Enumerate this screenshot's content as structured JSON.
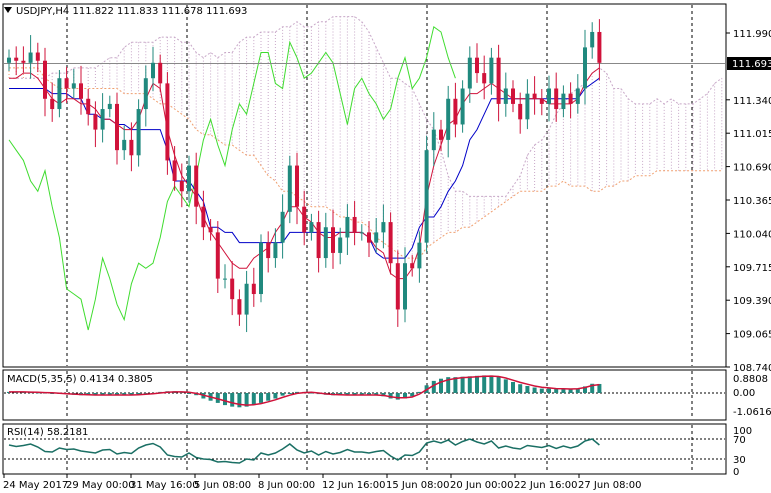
{
  "chart_data": {
    "type": "candlestick",
    "symbol": "USDJPY,H4",
    "title": "USDJPY,H4  111.822 111.833 111.678 111.693",
    "ohlc": [
      111.822,
      111.833,
      111.678,
      111.693
    ],
    "current_price": "111.693",
    "main_panel": {
      "ylim": [
        108.74,
        112.2
      ],
      "y_ticks": [
        "111.990",
        "111.340",
        "111.015",
        "110.690",
        "110.365",
        "110.040",
        "109.715",
        "109.390",
        "109.065",
        "108.740"
      ],
      "series": [
        {
          "name": "Price",
          "kind": "candles",
          "up_color": "#20897e",
          "down_color": "#d0123a"
        },
        {
          "kind": "line",
          "color": "#0000c8"
        },
        {
          "kind": "line",
          "color": "#d0123a"
        },
        {
          "kind": "line",
          "color": "#3fdc2f"
        },
        {
          "kind": "cloud",
          "colors": [
            "#c8a8c8",
            "#f0a070"
          ]
        }
      ],
      "closes": [
        111.75,
        111.72,
        111.7,
        111.8,
        111.72,
        111.35,
        111.25,
        111.55,
        111.45,
        111.5,
        111.35,
        111.2,
        111.05,
        111.25,
        111.3,
        110.85,
        110.95,
        110.8,
        111.25,
        111.55,
        111.7,
        111.5,
        110.75,
        110.55,
        110.45,
        110.7,
        110.3,
        110.1,
        110.05,
        109.6,
        109.6,
        109.4,
        109.25,
        109.55,
        109.45,
        109.95,
        109.8,
        109.95,
        110.25,
        110.7,
        110.3,
        110.05,
        110.15,
        109.8,
        110.1,
        109.85,
        110.0,
        110.2,
        110.05,
        110.05,
        109.95,
        110.05,
        110.15,
        109.75,
        109.3,
        109.75,
        109.7,
        109.95,
        110.85,
        111.05,
        110.95,
        111.35,
        111.1,
        111.45,
        111.75,
        111.6,
        111.5,
        111.75,
        111.3,
        111.45,
        111.3,
        111.15,
        111.4,
        111.35,
        111.3,
        111.45,
        111.25,
        111.4,
        111.3,
        111.45,
        111.85,
        112.0,
        111.7
      ],
      "kijun": [
        111.45,
        111.45,
        111.45,
        111.45,
        111.45,
        111.45,
        111.4,
        111.4,
        111.4,
        111.35,
        111.35,
        111.2,
        111.2,
        111.15,
        111.15,
        111.1,
        111.1,
        111.05,
        111.05,
        111.05,
        111.05,
        111.05,
        110.85,
        110.55,
        110.55,
        110.55,
        110.45,
        110.35,
        110.1,
        110.1,
        110.05,
        110.05,
        109.95,
        109.95,
        109.95,
        109.95,
        109.95,
        109.95,
        109.95,
        110.05,
        110.05,
        110.05,
        110.05,
        110.05,
        110.05,
        110.05,
        110.05,
        110.05,
        110.05,
        110.05,
        110.0,
        109.85,
        109.8,
        109.8,
        109.8,
        109.8,
        109.9,
        110.1,
        110.2,
        110.2,
        110.3,
        110.45,
        110.55,
        110.7,
        110.95,
        111.05,
        111.2,
        111.35,
        111.35,
        111.35,
        111.35,
        111.35,
        111.35,
        111.35,
        111.35,
        111.35,
        111.35,
        111.35,
        111.35,
        111.35,
        111.45,
        111.5,
        111.55
      ],
      "tenkan": [
        111.55,
        111.55,
        111.6,
        111.6,
        111.55,
        111.45,
        111.35,
        111.3,
        111.35,
        111.35,
        111.3,
        111.3,
        111.25,
        111.15,
        111.15,
        111.1,
        111.05,
        111.05,
        111.15,
        111.35,
        111.5,
        111.45,
        111.05,
        110.8,
        110.6,
        110.5,
        110.4,
        110.2,
        110.05,
        109.95,
        109.85,
        109.75,
        109.7,
        109.7,
        109.8,
        109.85,
        109.9,
        110.05,
        110.15,
        110.3,
        110.3,
        110.2,
        110.15,
        110.05,
        110.0,
        110.0,
        110.05,
        110.05,
        110.05,
        110.05,
        110.0,
        109.9,
        109.85,
        109.65,
        109.6,
        109.6,
        109.7,
        109.9,
        110.4,
        110.7,
        110.9,
        111.1,
        111.15,
        111.3,
        111.4,
        111.4,
        111.45,
        111.5,
        111.45,
        111.4,
        111.35,
        111.35,
        111.35,
        111.35,
        111.35,
        111.3,
        111.3,
        111.3,
        111.3,
        111.35,
        111.5,
        111.6,
        111.65
      ],
      "chikou": [
        110.95,
        110.85,
        110.75,
        110.55,
        110.45,
        110.65,
        110.3,
        110.0,
        109.5,
        109.45,
        109.4,
        109.1,
        109.4,
        109.8,
        109.6,
        109.35,
        109.2,
        109.55,
        109.75,
        109.7,
        109.75,
        110.0,
        110.35,
        110.5,
        110.4,
        110.3,
        110.6,
        110.95,
        111.15,
        110.9,
        110.7,
        111.05,
        111.3,
        111.2,
        111.5,
        111.8,
        111.8,
        111.5,
        111.45,
        111.9,
        111.75,
        111.55,
        111.6,
        111.7,
        111.8,
        111.7,
        111.4,
        111.1,
        111.45,
        111.55,
        111.4,
        111.3,
        111.15,
        111.25,
        111.55,
        111.75,
        111.45,
        111.55,
        111.75,
        112.05,
        112.0,
        111.75,
        111.55
      ],
      "cloud_a": [
        111.55,
        111.55,
        111.55,
        111.55,
        111.55,
        111.55,
        111.6,
        111.6,
        111.6,
        111.65,
        111.65,
        111.65,
        111.65,
        111.7,
        111.75,
        111.75,
        111.85,
        111.9,
        111.9,
        111.9,
        111.9,
        111.95,
        111.95,
        111.95,
        111.9,
        111.9,
        111.8,
        111.75,
        111.8,
        111.75,
        111.8,
        111.8,
        111.9,
        111.95,
        111.95,
        112.0,
        112.0,
        112.0,
        112.05,
        112.05,
        112.1,
        112.05,
        112.05,
        112.1,
        112.1,
        112.15,
        112.15,
        112.15,
        112.15,
        112.1,
        112.0,
        111.85,
        111.7,
        111.55,
        111.55,
        111.5,
        111.45,
        111.3,
        111.15,
        111.05,
        110.85,
        110.6,
        110.45,
        110.45,
        110.4,
        110.4,
        110.4,
        110.4,
        110.4,
        110.4,
        110.5,
        110.6,
        110.8,
        110.9,
        110.95,
        111.05,
        111.2,
        111.3,
        111.4,
        111.45,
        111.5,
        111.6,
        111.65,
        111.6,
        111.45,
        111.45,
        111.35,
        111.3,
        111.3,
        111.3,
        111.35,
        111.3,
        111.35,
        111.3,
        111.3,
        111.3,
        111.35,
        111.4,
        111.5,
        111.55,
        111.6,
        111.65,
        111.65,
        111.65,
        111.65
      ],
      "cloud_b": [
        111.65,
        111.65,
        111.65,
        111.65,
        111.65,
        111.55,
        111.5,
        111.45,
        111.45,
        111.45,
        111.45,
        111.45,
        111.45,
        111.45,
        111.45,
        111.45,
        111.4,
        111.4,
        111.4,
        111.4,
        111.35,
        111.3,
        111.3,
        111.25,
        111.2,
        111.15,
        111.05,
        111.0,
        111.0,
        110.95,
        110.9,
        110.9,
        110.85,
        110.8,
        110.8,
        110.7,
        110.6,
        110.55,
        110.45,
        110.45,
        110.4,
        110.35,
        110.3,
        110.3,
        110.3,
        110.25,
        110.2,
        110.2,
        110.15,
        110.15,
        110.1,
        110.0,
        109.95,
        109.9,
        109.85,
        109.8,
        109.8,
        109.8,
        109.9,
        109.95,
        110.0,
        110.05,
        110.05,
        110.1,
        110.1,
        110.15,
        110.2,
        110.25,
        110.3,
        110.35,
        110.4,
        110.45,
        110.45,
        110.45,
        110.45,
        110.5,
        110.5,
        110.55,
        110.5,
        110.5,
        110.5,
        110.45,
        110.45,
        110.5,
        110.5,
        110.55,
        110.55,
        110.6,
        110.6,
        110.6,
        110.65,
        110.65,
        110.65,
        110.65,
        110.65,
        110.65,
        110.65,
        110.65,
        110.65,
        110.65,
        110.65,
        110.65,
        110.65,
        110.65,
        110.65
      ]
    },
    "macd_panel": {
      "label": "MACD(5,35,5) 0.4134 0.3805",
      "ylim": [
        -0.2,
        1.0
      ],
      "y_ticks": [
        "0.8808",
        "0.00",
        "-1.0616"
      ],
      "histogram": [
        0.05,
        0.05,
        0.05,
        0.04,
        0.03,
        0.02,
        0.0,
        -0.02,
        -0.05,
        -0.08,
        -0.1,
        -0.1,
        -0.1,
        -0.1,
        -0.1,
        -0.1,
        -0.1,
        -0.1,
        -0.08,
        -0.05,
        0.0,
        0.05,
        0.08,
        0.08,
        0.05,
        0.0,
        -0.1,
        -0.25,
        -0.35,
        -0.45,
        -0.55,
        -0.62,
        -0.65,
        -0.62,
        -0.55,
        -0.45,
        -0.35,
        -0.25,
        -0.12,
        -0.02,
        0.05,
        0.05,
        0.02,
        -0.05,
        -0.08,
        -0.1,
        -0.1,
        -0.1,
        -0.1,
        -0.1,
        -0.1,
        -0.1,
        -0.15,
        -0.25,
        -0.3,
        -0.25,
        -0.15,
        0.05,
        0.35,
        0.55,
        0.65,
        0.72,
        0.72,
        0.74,
        0.76,
        0.78,
        0.8,
        0.8,
        0.74,
        0.62,
        0.5,
        0.4,
        0.32,
        0.25,
        0.2,
        0.2,
        0.18,
        0.18,
        0.18,
        0.2,
        0.3,
        0.42,
        0.41
      ],
      "signal": [
        0.05,
        0.05,
        0.05,
        0.04,
        0.03,
        0.02,
        0.01,
        -0.01,
        -0.03,
        -0.05,
        -0.07,
        -0.08,
        -0.09,
        -0.09,
        -0.09,
        -0.09,
        -0.09,
        -0.09,
        -0.08,
        -0.06,
        -0.03,
        0.0,
        0.03,
        0.05,
        0.05,
        0.03,
        -0.02,
        -0.1,
        -0.18,
        -0.27,
        -0.36,
        -0.45,
        -0.52,
        -0.55,
        -0.53,
        -0.48,
        -0.4,
        -0.31,
        -0.2,
        -0.1,
        -0.02,
        0.02,
        0.03,
        0.0,
        -0.04,
        -0.07,
        -0.08,
        -0.09,
        -0.09,
        -0.09,
        -0.09,
        -0.09,
        -0.11,
        -0.17,
        -0.22,
        -0.22,
        -0.18,
        -0.05,
        0.15,
        0.35,
        0.5,
        0.6,
        0.66,
        0.7,
        0.72,
        0.74,
        0.76,
        0.77,
        0.75,
        0.68,
        0.58,
        0.48,
        0.4,
        0.32,
        0.26,
        0.23,
        0.2,
        0.19,
        0.18,
        0.19,
        0.25,
        0.34,
        0.38
      ]
    },
    "rsi_panel": {
      "label": "RSI(14) 58.2181",
      "ylim": [
        0,
        100
      ],
      "y_ticks": [
        "100",
        "70",
        "30",
        "0"
      ],
      "levels": [
        70,
        30
      ],
      "values": [
        58,
        55,
        57,
        60,
        54,
        45,
        44,
        52,
        49,
        50,
        46,
        44,
        42,
        48,
        49,
        40,
        43,
        41,
        52,
        58,
        61,
        54,
        38,
        35,
        34,
        42,
        33,
        30,
        29,
        24,
        25,
        23,
        22,
        30,
        28,
        42,
        38,
        42,
        50,
        60,
        48,
        42,
        46,
        38,
        45,
        40,
        43,
        49,
        44,
        44,
        42,
        45,
        47,
        36,
        28,
        38,
        37,
        44,
        62,
        66,
        62,
        68,
        58,
        65,
        70,
        64,
        60,
        66,
        52,
        56,
        52,
        50,
        57,
        55,
        53,
        57,
        51,
        56,
        52,
        56,
        66,
        70,
        58
      ]
    },
    "x_labels": [
      "24 May 2017",
      "29 May 00:00",
      "31 May 16:00",
      "5 Jun 08:00",
      "8 Jun 00:00",
      "12 Jun 16:00",
      "15 Jun 08:00",
      "20 Jun 00:00",
      "22 Jun 16:00",
      "27 Jun 08:00"
    ]
  },
  "colors": {
    "background": "#ffffff",
    "grid": "#000000",
    "up": "#20897e",
    "down": "#d0123a",
    "kijun": "#0000c8",
    "tenkan": "#d0123a",
    "chikou": "#3fdc2f",
    "cloud_up": "#c8a8c8",
    "cloud_down": "#f0a070",
    "macd_hist": "#20897e",
    "macd_signal": "#d0123a",
    "rsi": "#1a6f64",
    "price_box_bg": "#000000",
    "price_box_text": "#ffffff"
  }
}
